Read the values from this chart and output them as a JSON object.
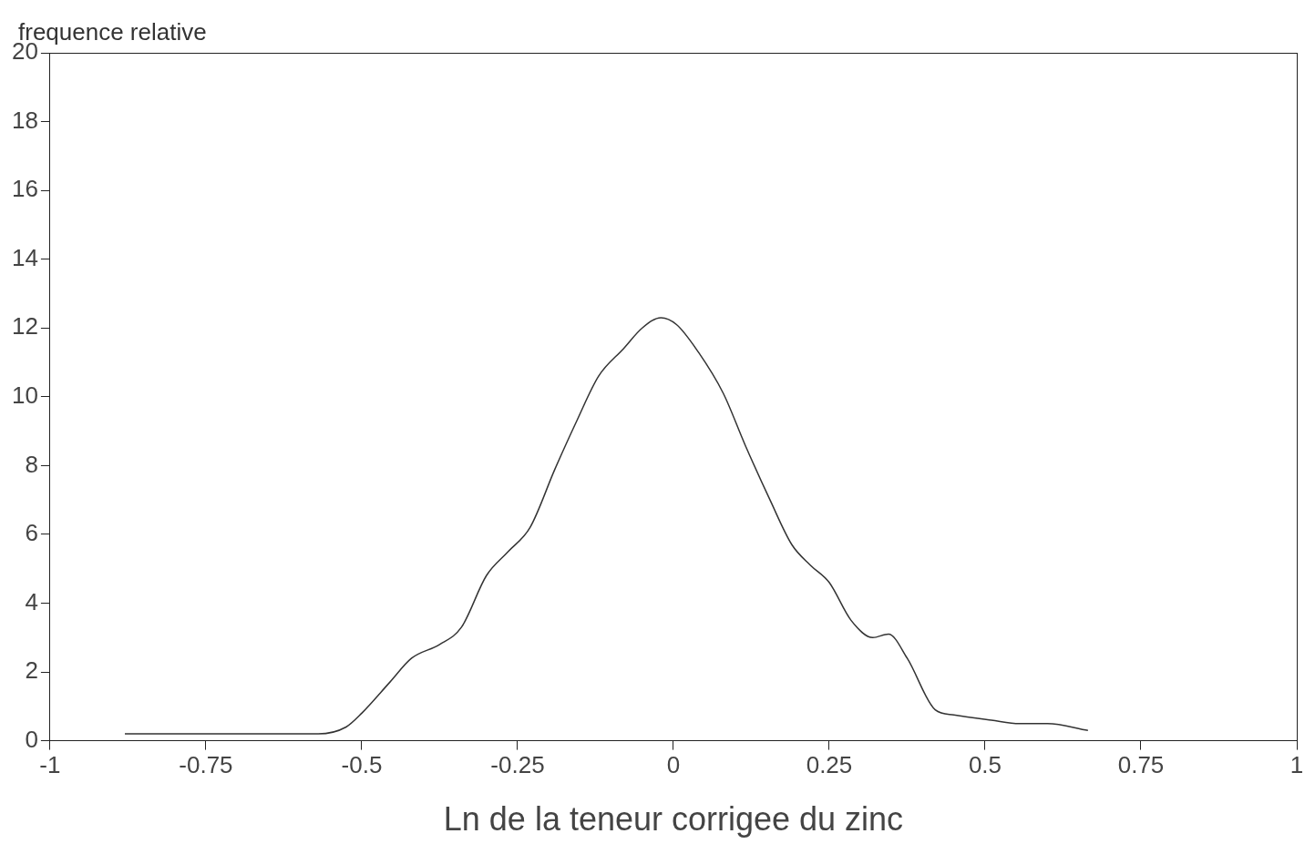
{
  "chart_data": {
    "type": "line",
    "xlabel": "Ln de la teneur corrigee du zinc",
    "ylabel": "frequence relative",
    "xlim": [
      -1,
      1
    ],
    "xticks": [
      -1,
      -0.75,
      -0.5,
      -0.25,
      0,
      0.25,
      0.5,
      0.75,
      1
    ],
    "ylim": [
      0,
      20
    ],
    "yticks": [
      0,
      2,
      4,
      6,
      8,
      10,
      12,
      14,
      16,
      18,
      20
    ],
    "grid": false,
    "legend": false,
    "marker": "none",
    "line_style": "solid",
    "series": [
      {
        "color": "#333333",
        "x": [
          -0.88,
          -0.57,
          -0.525,
          -0.5,
          -0.455,
          -0.42,
          -0.375,
          -0.34,
          -0.3,
          -0.265,
          -0.23,
          -0.19,
          -0.155,
          -0.12,
          -0.08,
          -0.05,
          -0.02,
          0.005,
          0.04,
          0.08,
          0.115,
          0.155,
          0.19,
          0.22,
          0.25,
          0.285,
          0.32,
          0.345,
          0.375,
          0.42,
          0.45,
          0.51,
          0.555,
          0.6,
          0.665
        ],
        "values": [
          0.2,
          0.2,
          0.4,
          0.8,
          1.7,
          2.4,
          2.8,
          3.3,
          4.8,
          5.5,
          6.2,
          7.9,
          9.3,
          10.6,
          11.4,
          12.0,
          12.3,
          12.1,
          11.3,
          10.1,
          8.6,
          7.0,
          5.7,
          5.1,
          4.6,
          3.5,
          3.0,
          3.1,
          2.4,
          0.9,
          0.75,
          0.6,
          0.5,
          0.5,
          0.3
        ]
      }
    ]
  }
}
